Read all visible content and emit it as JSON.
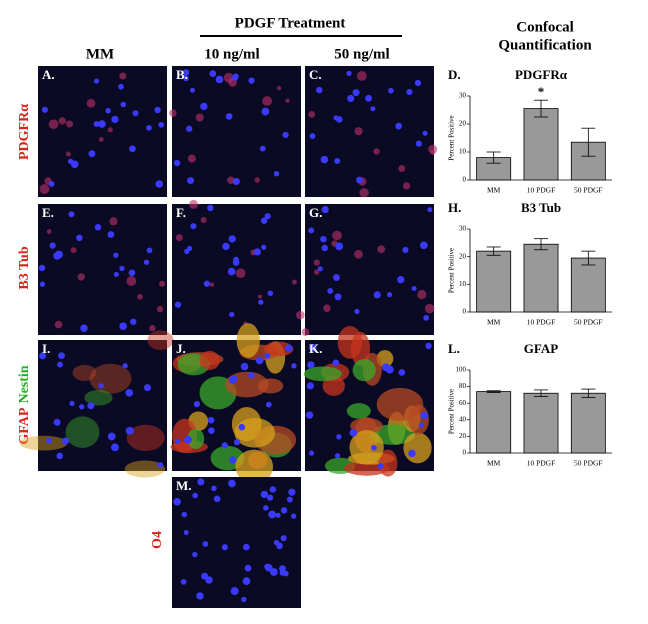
{
  "header": {
    "treatment": "PDGF Treatment",
    "columns": [
      "MM",
      "10 ng/ml",
      "50 ng/ml"
    ],
    "quantification": [
      "Confocal",
      "Quantification"
    ]
  },
  "row_labels": [
    "PDGFRα",
    "B3 Tub",
    "GFAP",
    "Nestin",
    "O4"
  ],
  "panels": [
    "A.",
    "B.",
    "C.",
    "E.",
    "F.",
    "G.",
    "I.",
    "J.",
    "K.",
    "M."
  ],
  "chart_data": [
    {
      "type": "bar",
      "panel": "D.",
      "title": "PDGFRα",
      "ylabel": "Percent Positive",
      "categories": [
        "MM",
        "10 PDGF",
        "50 PDGF"
      ],
      "values": [
        8,
        25.5,
        13.5
      ],
      "errors": [
        2,
        3,
        5
      ],
      "ylim": [
        0,
        30
      ],
      "yticks": [
        0,
        10,
        20,
        30
      ],
      "color": "#999999",
      "annotation": {
        "text": "*",
        "category": "10 PDGF"
      }
    },
    {
      "type": "bar",
      "panel": "H.",
      "title": "B3 Tub",
      "ylabel": "Percent Positive",
      "categories": [
        "MM",
        "10 PDGF",
        "50 PDGF"
      ],
      "values": [
        22,
        24.5,
        19.5
      ],
      "errors": [
        1.5,
        2,
        2.5
      ],
      "ylim": [
        0,
        30
      ],
      "yticks": [
        0,
        10,
        20,
        30
      ],
      "color": "#999999"
    },
    {
      "type": "bar",
      "panel": "L.",
      "title": "GFAP",
      "ylabel": "Percent Positive",
      "categories": [
        "MM",
        "10 PDGF",
        "50 PDGF"
      ],
      "values": [
        74,
        72,
        72
      ],
      "errors": [
        1,
        4,
        5
      ],
      "ylim": [
        0,
        100
      ],
      "yticks": [
        0,
        20,
        40,
        60,
        80,
        100
      ],
      "color": "#999999"
    }
  ]
}
